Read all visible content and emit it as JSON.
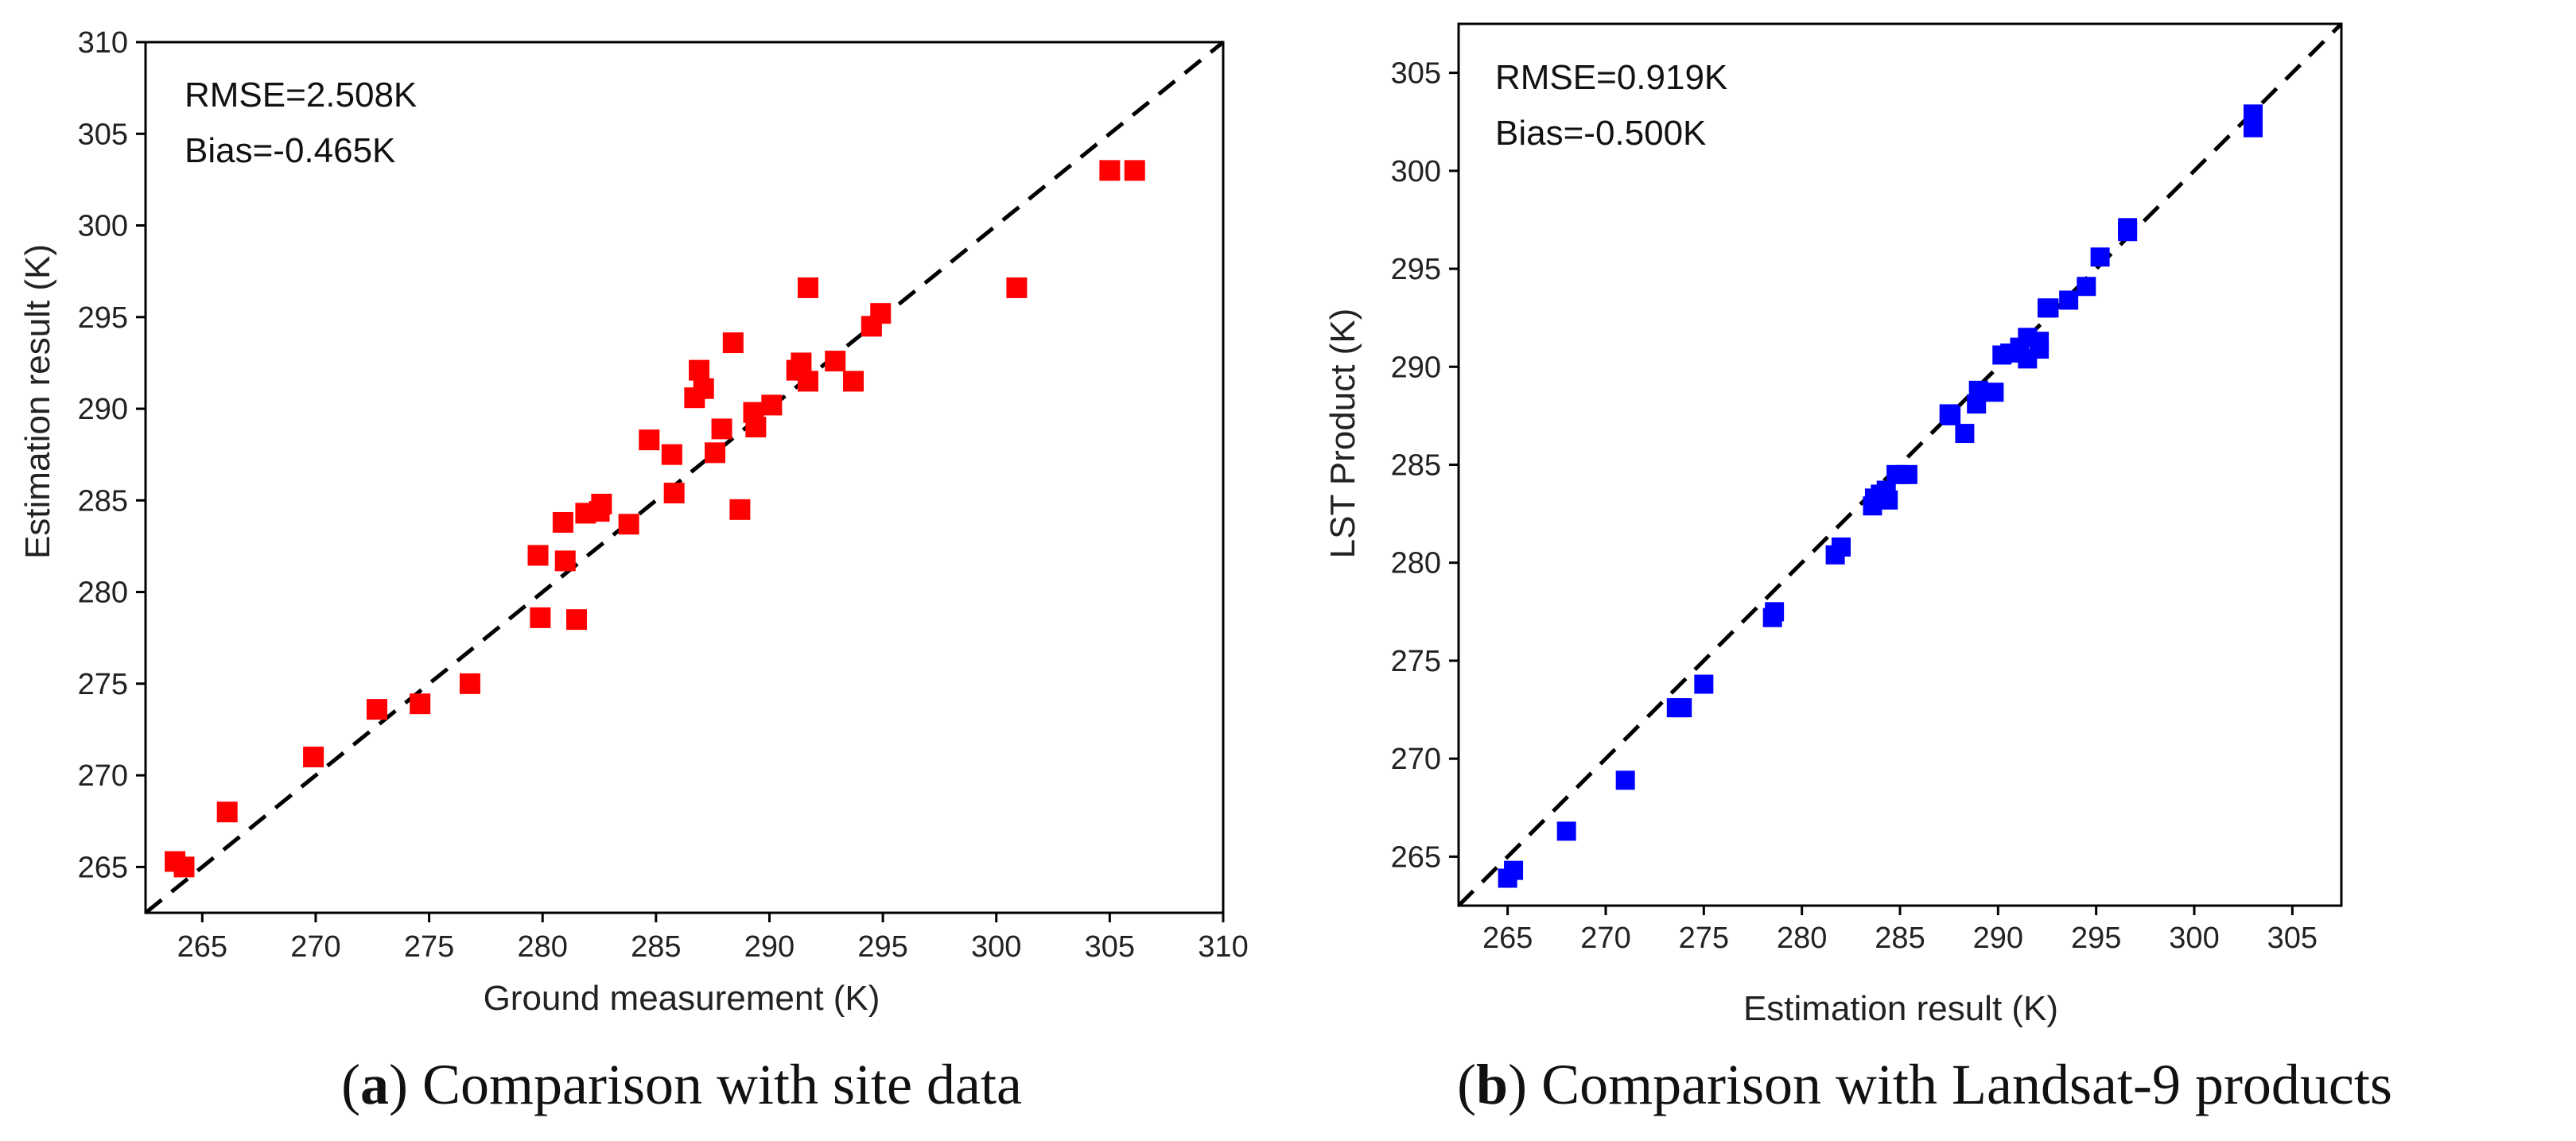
{
  "chart_data": [
    {
      "type": "scatter",
      "panel": "a",
      "caption_letter": "a",
      "caption_text": ") Comparison with site data",
      "xlabel": "Ground measurement (K)",
      "ylabel": "Estimation result (K)",
      "xlim": [
        262.5,
        310
      ],
      "ylim": [
        262.5,
        310
      ],
      "xticks": [
        265,
        270,
        275,
        280,
        285,
        290,
        295,
        300,
        305,
        310
      ],
      "yticks": [
        265,
        270,
        275,
        280,
        285,
        290,
        295,
        300,
        305,
        310
      ],
      "stats": [
        "RMSE=2.508K",
        "Bias=-0.465K"
      ],
      "reference_line": "1:1",
      "marker": "square",
      "color": "#ff0000",
      "series": [
        {
          "name": "site data",
          "points": [
            [
              263.8,
              265.3
            ],
            [
              264.2,
              265.0
            ],
            [
              266.1,
              268.0
            ],
            [
              269.9,
              271.0
            ],
            [
              272.7,
              273.6
            ],
            [
              274.6,
              273.9
            ],
            [
              276.8,
              275.0
            ],
            [
              279.8,
              282.0
            ],
            [
              279.9,
              278.6
            ],
            [
              280.9,
              283.8
            ],
            [
              281.0,
              281.7
            ],
            [
              281.5,
              278.5
            ],
            [
              281.9,
              284.3
            ],
            [
              282.5,
              284.4
            ],
            [
              282.6,
              284.8
            ],
            [
              283.8,
              283.7
            ],
            [
              284.7,
              288.3
            ],
            [
              285.7,
              287.5
            ],
            [
              285.8,
              285.4
            ],
            [
              286.7,
              290.6
            ],
            [
              286.9,
              292.1
            ],
            [
              287.1,
              291.1
            ],
            [
              287.6,
              287.6
            ],
            [
              287.9,
              288.9
            ],
            [
              288.4,
              293.6
            ],
            [
              288.7,
              284.5
            ],
            [
              289.3,
              289.8
            ],
            [
              289.4,
              289.0
            ],
            [
              290.1,
              290.2
            ],
            [
              291.2,
              292.1
            ],
            [
              291.4,
              292.5
            ],
            [
              291.7,
              291.5
            ],
            [
              291.7,
              296.6
            ],
            [
              292.9,
              292.6
            ],
            [
              293.7,
              291.5
            ],
            [
              294.5,
              294.5
            ],
            [
              294.9,
              295.2
            ],
            [
              300.9,
              296.6
            ],
            [
              305.0,
              303.0
            ],
            [
              306.1,
              303.0
            ]
          ]
        }
      ]
    },
    {
      "type": "scatter",
      "panel": "b",
      "caption_letter": "b",
      "caption_text": ") Comparison with Landsat-9 products",
      "xlabel": "Estimation result (K)",
      "ylabel": "LST Product (K)",
      "xlim": [
        262.5,
        307.5
      ],
      "ylim": [
        262.5,
        307.5
      ],
      "xticks": [
        265,
        270,
        275,
        280,
        285,
        290,
        295,
        300,
        305
      ],
      "yticks": [
        265,
        270,
        275,
        280,
        285,
        290,
        295,
        300,
        305
      ],
      "stats": [
        "RMSE=0.919K",
        "Bias=-0.500K"
      ],
      "reference_line": "1:1",
      "marker": "square",
      "color": "#0000ff",
      "series": [
        {
          "name": "Landsat-9 products",
          "points": [
            [
              265.0,
              263.9
            ],
            [
              265.3,
              264.3
            ],
            [
              268.0,
              266.3
            ],
            [
              271.0,
              268.9
            ],
            [
              273.6,
              272.6
            ],
            [
              273.9,
              272.6
            ],
            [
              275.0,
              273.8
            ],
            [
              278.5,
              277.2
            ],
            [
              278.6,
              277.5
            ],
            [
              281.7,
              280.4
            ],
            [
              282.0,
              280.8
            ],
            [
              283.6,
              282.9
            ],
            [
              283.7,
              283.3
            ],
            [
              284.0,
              283.5
            ],
            [
              284.3,
              283.7
            ],
            [
              284.4,
              283.2
            ],
            [
              284.8,
              284.5
            ],
            [
              285.4,
              284.5
            ],
            [
              287.5,
              287.6
            ],
            [
              287.6,
              287.5
            ],
            [
              288.3,
              286.6
            ],
            [
              288.9,
              288.1
            ],
            [
              289.0,
              288.8
            ],
            [
              289.8,
              288.7
            ],
            [
              290.2,
              290.6
            ],
            [
              290.6,
              290.7
            ],
            [
              291.1,
              291.0
            ],
            [
              291.5,
              290.4
            ],
            [
              291.5,
              291.5
            ],
            [
              292.1,
              290.9
            ],
            [
              292.1,
              291.3
            ],
            [
              292.5,
              293.0
            ],
            [
              292.6,
              293.0
            ],
            [
              293.6,
              293.4
            ],
            [
              294.5,
              294.1
            ],
            [
              295.2,
              295.6
            ],
            [
              296.6,
              296.9
            ],
            [
              296.6,
              297.1
            ],
            [
              303.0,
              302.2
            ],
            [
              303.0,
              302.9
            ]
          ]
        }
      ]
    }
  ]
}
